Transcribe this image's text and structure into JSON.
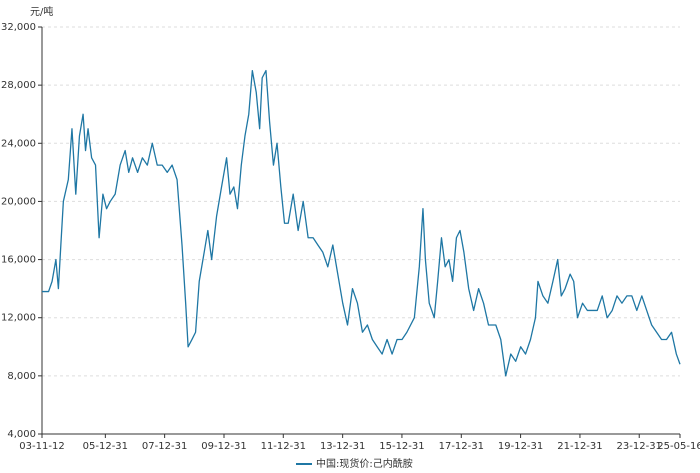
{
  "chart_data": {
    "type": "line",
    "y_unit": "元/吨",
    "x": [
      "03-11-12",
      "04-02-01",
      "04-03-15",
      "04-05-01",
      "04-06-01",
      "04-07-01",
      "04-08-01",
      "04-10-01",
      "04-11-15",
      "05-01-01",
      "05-02-15",
      "05-04-01",
      "05-05-01",
      "05-06-01",
      "05-07-15",
      "05-09-01",
      "05-10-15",
      "05-12-01",
      "06-01-15",
      "06-03-01",
      "06-05-01",
      "06-07-01",
      "06-09-01",
      "06-10-15",
      "06-12-01",
      "07-02-01",
      "07-04-01",
      "07-06-01",
      "07-08-01",
      "07-10-01",
      "07-12-01",
      "08-02-01",
      "08-04-01",
      "08-06-01",
      "08-08-01",
      "08-09-15",
      "08-10-15",
      "08-12-01",
      "09-01-15",
      "09-03-01",
      "09-05-01",
      "09-06-15",
      "09-08-01",
      "09-10-01",
      "09-12-01",
      "10-02-01",
      "10-03-15",
      "10-05-01",
      "10-06-15",
      "10-08-01",
      "10-09-15",
      "10-11-01",
      "10-12-15",
      "11-02-01",
      "11-03-15",
      "11-04-15",
      "11-06-01",
      "11-07-15",
      "11-09-01",
      "11-10-15",
      "11-12-01",
      "12-01-15",
      "12-03-01",
      "12-05-01",
      "12-07-01",
      "12-09-01",
      "12-11-01",
      "13-01-01",
      "13-03-01",
      "13-05-01",
      "13-07-01",
      "13-09-01",
      "13-11-01",
      "14-01-01",
      "14-03-01",
      "14-05-01",
      "14-07-01",
      "14-09-01",
      "14-11-01",
      "15-01-01",
      "15-03-01",
      "15-05-01",
      "15-07-01",
      "15-09-01",
      "15-11-01",
      "16-01-01",
      "16-03-01",
      "16-06-01",
      "16-08-01",
      "16-09-15",
      "16-10-15",
      "16-12-01",
      "17-02-01",
      "17-03-15",
      "17-05-01",
      "17-06-15",
      "17-08-01",
      "17-09-15",
      "17-11-01",
      "17-12-15",
      "18-02-01",
      "18-04-01",
      "18-06-01",
      "18-08-01",
      "18-10-01",
      "18-12-01",
      "19-03-01",
      "19-05-01",
      "19-07-01",
      "19-09-01",
      "19-11-01",
      "20-01-01",
      "20-03-01",
      "20-05-01",
      "20-07-01",
      "20-08-01",
      "20-10-01",
      "20-12-01",
      "21-02-01",
      "21-04-01",
      "21-05-15",
      "21-07-01",
      "21-09-01",
      "21-10-15",
      "21-12-01",
      "22-02-01",
      "22-04-01",
      "22-06-01",
      "22-08-01",
      "22-10-01",
      "22-12-01",
      "23-02-01",
      "23-04-01",
      "23-06-01",
      "23-08-01",
      "23-10-01",
      "23-12-01",
      "24-02-01",
      "24-04-01",
      "24-06-01",
      "24-08-01",
      "24-10-01",
      "24-12-01",
      "25-02-01",
      "25-04-01",
      "25-05-16"
    ],
    "series": [
      {
        "name": "中国:现货价:己内酰胺",
        "color": "#1f77a4",
        "values": [
          13800,
          13800,
          14500,
          16000,
          14000,
          17000,
          20000,
          21500,
          25000,
          20500,
          24500,
          26000,
          23500,
          25000,
          23000,
          22500,
          17500,
          20500,
          19500,
          20000,
          20500,
          22500,
          23500,
          22000,
          23000,
          22000,
          23000,
          22500,
          24000,
          22500,
          22500,
          22000,
          22500,
          21500,
          17000,
          13000,
          10000,
          10500,
          11000,
          14500,
          16500,
          18000,
          16000,
          19000,
          21000,
          23000,
          20500,
          21000,
          19500,
          22500,
          24500,
          26000,
          29000,
          27500,
          25000,
          28500,
          29000,
          25500,
          22500,
          24000,
          21000,
          18500,
          18500,
          20500,
          18000,
          20000,
          17500,
          17500,
          17000,
          16500,
          15500,
          17000,
          15000,
          13000,
          11500,
          14000,
          13000,
          11000,
          11500,
          10500,
          10000,
          9500,
          10500,
          9500,
          10500,
          10500,
          11000,
          12000,
          15500,
          19500,
          16000,
          13000,
          12000,
          14500,
          17500,
          15500,
          16000,
          14500,
          17500,
          18000,
          16500,
          14000,
          12500,
          14000,
          13000,
          11500,
          11500,
          10500,
          8000,
          9500,
          9000,
          10000,
          9500,
          10500,
          12000,
          14500,
          13500,
          13000,
          14500,
          16000,
          13500,
          14000,
          15000,
          14500,
          12000,
          13000,
          12500,
          12500,
          12500,
          13500,
          12000,
          12500,
          13500,
          13000,
          13500,
          13500,
          12500,
          13500,
          12500,
          11500,
          11000,
          10500,
          10500,
          11000,
          9500,
          8800
        ]
      }
    ],
    "xlim": [
      "03-11-12",
      "25-05-16"
    ],
    "xticks": [
      "03-11-12",
      "05-12-31",
      "07-12-31",
      "09-12-31",
      "11-12-31",
      "13-12-31",
      "15-12-31",
      "17-12-31",
      "19-12-31",
      "21-12-31",
      "23-12-31",
      "25-05-16"
    ],
    "ylim": [
      4000,
      32000
    ],
    "yticks": [
      {
        "value": 4000,
        "label": "4,000"
      },
      {
        "value": 8000,
        "label": "8,000"
      },
      {
        "value": 12000,
        "label": "12,000"
      },
      {
        "value": 16000,
        "label": "16,000"
      },
      {
        "value": 20000,
        "label": "20,000"
      },
      {
        "value": 24000,
        "label": "24,000"
      },
      {
        "value": 28000,
        "label": "28,000"
      },
      {
        "value": 32000,
        "label": "32,000"
      }
    ],
    "grid": true
  }
}
